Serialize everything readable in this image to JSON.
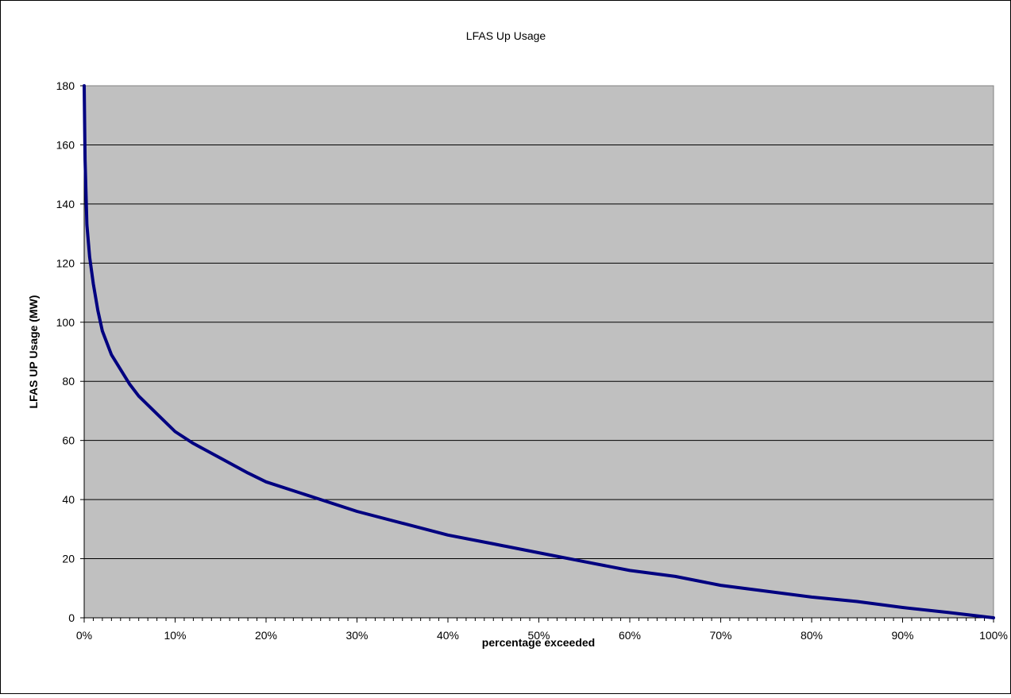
{
  "chart_data": {
    "type": "line",
    "title": "LFAS Up Usage",
    "xlabel": "percentage exceeded",
    "ylabel": "LFAS UP Usage (MW)",
    "xlim": [
      0,
      100
    ],
    "ylim": [
      0,
      180
    ],
    "x_tick_labels": [
      "0%",
      "10%",
      "20%",
      "30%",
      "40%",
      "50%",
      "60%",
      "70%",
      "80%",
      "90%",
      "100%"
    ],
    "y_tick_labels": [
      "0",
      "20",
      "40",
      "60",
      "80",
      "100",
      "120",
      "140",
      "160",
      "180"
    ],
    "grid": "horizontal",
    "plot_background": "#C0C0C0",
    "series": [
      {
        "color": "#000080",
        "x": [
          0,
          0.1,
          0.3,
          0.6,
          1,
          1.5,
          2,
          3,
          4,
          5,
          6,
          8,
          10,
          12,
          15,
          18,
          20,
          25,
          30,
          35,
          40,
          45,
          50,
          55,
          60,
          65,
          70,
          75,
          80,
          85,
          90,
          95,
          100
        ],
        "y": [
          180,
          155,
          133,
          122,
          113,
          104,
          97,
          89,
          84,
          79,
          75,
          69,
          63,
          59,
          54,
          49,
          46,
          41,
          36,
          32,
          28,
          25,
          22,
          19,
          16,
          14,
          11,
          9,
          7,
          5.5,
          3.5,
          1.8,
          0
        ]
      }
    ]
  }
}
